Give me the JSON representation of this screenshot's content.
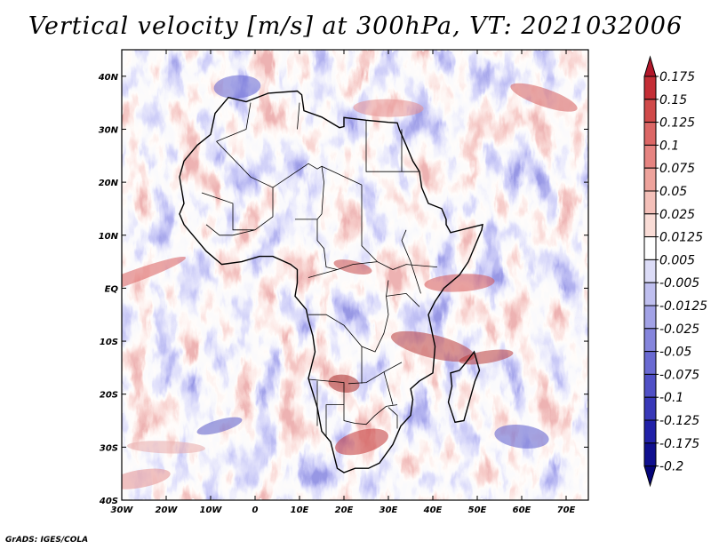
{
  "title": "Vertical velocity [m/s] at 300hPa, VT: 2021032006",
  "credit": "GrADS: IGES/COLA",
  "map": {
    "lon_min": -30,
    "lon_max": 75,
    "lat_min": -40,
    "lat_max": 45,
    "lat_ticks": [
      {
        "value": 40,
        "label": "40N"
      },
      {
        "value": 30,
        "label": "30N"
      },
      {
        "value": 20,
        "label": "20N"
      },
      {
        "value": 10,
        "label": "10N"
      },
      {
        "value": 0,
        "label": "EQ"
      },
      {
        "value": -10,
        "label": "10S"
      },
      {
        "value": -20,
        "label": "20S"
      },
      {
        "value": -30,
        "label": "30S"
      },
      {
        "value": -40,
        "label": "40S"
      }
    ],
    "lon_ticks": [
      {
        "value": -30,
        "label": "30W"
      },
      {
        "value": -20,
        "label": "20W"
      },
      {
        "value": -10,
        "label": "10W"
      },
      {
        "value": 0,
        "label": "0"
      },
      {
        "value": 10,
        "label": "10E"
      },
      {
        "value": 20,
        "label": "20E"
      },
      {
        "value": 30,
        "label": "30E"
      },
      {
        "value": 40,
        "label": "40E"
      },
      {
        "value": 50,
        "label": "50E"
      },
      {
        "value": 60,
        "label": "60E"
      },
      {
        "value": 70,
        "label": "70E"
      }
    ],
    "coastline_lonlat": [
      [
        -6,
        36
      ],
      [
        -9,
        33
      ],
      [
        -10,
        29
      ],
      [
        -13,
        27
      ],
      [
        -16,
        24
      ],
      [
        -17,
        21
      ],
      [
        -16,
        16
      ],
      [
        -17,
        14
      ],
      [
        -16,
        12
      ],
      [
        -15,
        11
      ],
      [
        -13,
        9
      ],
      [
        -11,
        7
      ],
      [
        -7.5,
        4.5
      ],
      [
        -3,
        5
      ],
      [
        1,
        6
      ],
      [
        4,
        6
      ],
      [
        8,
        4.5
      ],
      [
        9.5,
        3.5
      ],
      [
        9.5,
        1
      ],
      [
        9,
        -1.5
      ],
      [
        11.5,
        -4
      ],
      [
        12,
        -6
      ],
      [
        13,
        -9
      ],
      [
        13.5,
        -12
      ],
      [
        12,
        -17
      ],
      [
        14,
        -22.5
      ],
      [
        15,
        -27
      ],
      [
        17,
        -29
      ],
      [
        18.5,
        -34
      ],
      [
        20,
        -34.8
      ],
      [
        22.5,
        -34
      ],
      [
        25.5,
        -34
      ],
      [
        28,
        -33
      ],
      [
        31,
        -29.5
      ],
      [
        32.8,
        -26
      ],
      [
        35,
        -24
      ],
      [
        35.5,
        -21
      ],
      [
        35,
        -19
      ],
      [
        37,
        -17.5
      ],
      [
        40,
        -16
      ],
      [
        40.5,
        -11
      ],
      [
        39.5,
        -7
      ],
      [
        39,
        -5
      ],
      [
        40.5,
        -2.5
      ],
      [
        42.5,
        0
      ],
      [
        46,
        2.5
      ],
      [
        48,
        5
      ],
      [
        51,
        11
      ],
      [
        51.2,
        12
      ],
      [
        44,
        10.5
      ],
      [
        43,
        12
      ],
      [
        43,
        13
      ],
      [
        42,
        15
      ],
      [
        39,
        16
      ],
      [
        37.5,
        19
      ],
      [
        37,
        22
      ],
      [
        35.5,
        24
      ],
      [
        34,
        27
      ],
      [
        32.5,
        29.9
      ],
      [
        32,
        31.2
      ],
      [
        30,
        31.3
      ],
      [
        25,
        31.7
      ],
      [
        20,
        32.2
      ],
      [
        20,
        30.5
      ],
      [
        19,
        30.3
      ],
      [
        15,
        32.3
      ],
      [
        11,
        33.5
      ],
      [
        10.5,
        36.5
      ],
      [
        9.5,
        37.2
      ],
      [
        3,
        36.8
      ],
      [
        -2,
        35.2
      ],
      [
        -6,
        36
      ]
    ],
    "madagascar_lonlat": [
      [
        49.3,
        -12
      ],
      [
        50.5,
        -15.5
      ],
      [
        49.5,
        -17.5
      ],
      [
        48,
        -22
      ],
      [
        47,
        -25
      ],
      [
        45,
        -25.3
      ],
      [
        43.5,
        -21.5
      ],
      [
        44.3,
        -18.5
      ],
      [
        44,
        -16
      ],
      [
        46,
        -15.5
      ],
      [
        47.5,
        -14
      ],
      [
        49.3,
        -12
      ]
    ]
  },
  "colorbar": {
    "labels": [
      "0.175",
      "0.15",
      "0.125",
      "0.1",
      "0.075",
      "0.05",
      "0.025",
      "0.0125",
      "0.005",
      "-0.005",
      "-0.0125",
      "-0.025",
      "-0.05",
      "-0.075",
      "-0.1",
      "-0.125",
      "-0.175",
      "-0.2"
    ],
    "colors": [
      "#b2182b",
      "#c42e36",
      "#d04a4a",
      "#dc6766",
      "#e68481",
      "#eea39c",
      "#f4c0b9",
      "#f9dcd6",
      "#ffffff",
      "#dcdcf7",
      "#bfbfef",
      "#a2a2e6",
      "#8585dc",
      "#6a6ad2",
      "#5050c6",
      "#3838b8",
      "#2121a8",
      "#10108f",
      "#05057a"
    ]
  }
}
